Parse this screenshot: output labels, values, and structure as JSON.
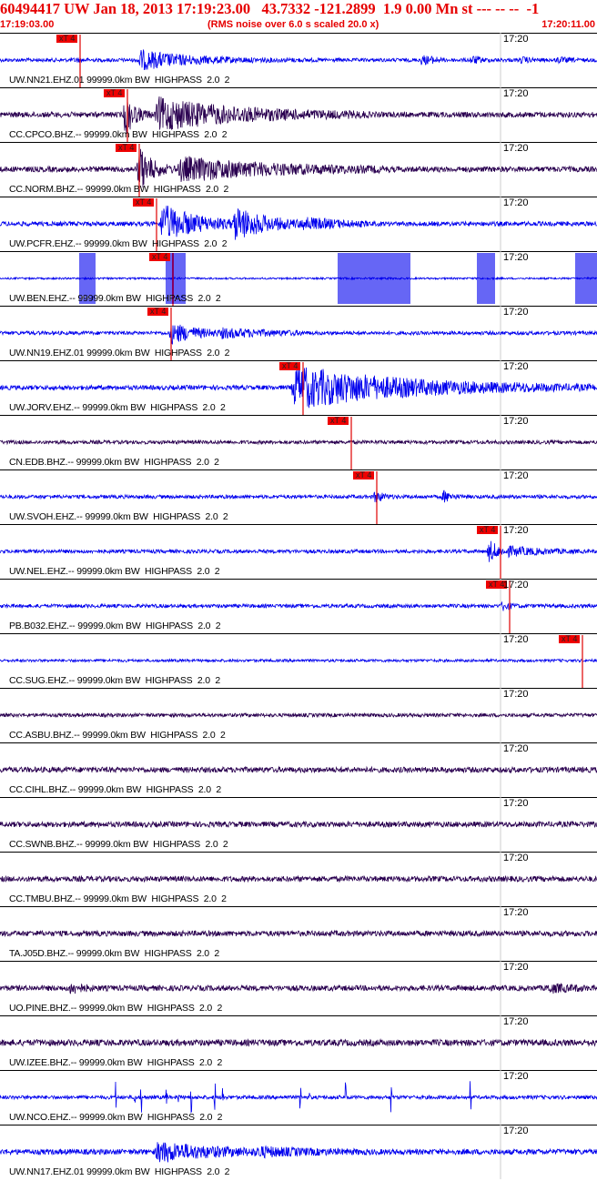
{
  "header": {
    "title": "60494417 UW Jan 18, 2013 17:19:23.00   43.7332 -121.2899  1.9 0.00 Mn st --- -- --  -1",
    "start_time": "17:19:03.00",
    "rms_note": "(RMS noise over 6.0 s scaled 20.0 x)",
    "end_time": "17:20:11.00"
  },
  "colors": {
    "blue": "#0000ee",
    "dark": "#2a0050",
    "red": "#e00000"
  },
  "chart_data": {
    "type": "line",
    "title": "60494417 UW Jan 18, 2013 17:19:23.00   43.7332 -121.2899  1.9 0.00 Mn st --- -- --  -1",
    "time_range": [
      "17:19:03.00",
      "17:20:11.00"
    ],
    "tick_label": "17:20",
    "pick_label": "xT 4",
    "traces": [
      {
        "label": "UW.NN21.EHZ.01 99999.0km BW  HIGHPASS  2.0  2",
        "color": "blue",
        "pick": 88,
        "amp": 2,
        "bursts": [
          [
            80,
            90,
            2,
            10
          ],
          [
            150,
            350,
            11,
            55
          ],
          [
            460,
            480,
            5,
            20
          ],
          [
            515,
            525,
            4,
            20
          ],
          [
            570,
            580,
            3,
            15
          ],
          [
            610,
            630,
            3,
            12
          ]
        ]
      },
      {
        "label": "CC.CPCO.BHZ.-- 99999.0km BW  HIGHPASS  2.0  2",
        "color": "dark",
        "pick": 140,
        "amp": 3,
        "bursts": [
          [
            135,
            175,
            30,
            10
          ],
          [
            170,
            400,
            18,
            90
          ]
        ]
      },
      {
        "label": "CC.NORM.BHZ.-- 99999.0km BW  HIGHPASS  2.0  2",
        "color": "dark",
        "pick": 153,
        "amp": 3,
        "bursts": [
          [
            150,
            200,
            30,
            14
          ],
          [
            195,
            420,
            13,
            100
          ]
        ]
      },
      {
        "label": "UW.PCFR.EHZ.-- 99999.0km BW  HIGHPASS  2.0  2",
        "color": "blue",
        "pick": 172,
        "amp": 2.5,
        "bursts": [
          [
            175,
            255,
            22,
            40
          ],
          [
            255,
            330,
            20,
            35
          ],
          [
            330,
            400,
            7,
            40
          ]
        ]
      },
      {
        "label": "UW.BEN.EHZ.-- 99999.0km BW  HIGHPASS  2.0  2",
        "color": "blue",
        "pick": 190,
        "amp": 1,
        "boxes": [
          [
            88,
            106
          ],
          [
            183,
            205
          ],
          [
            372,
            452
          ],
          [
            525,
            545
          ],
          [
            633,
            656
          ]
        ]
      },
      {
        "label": "UW.NN19.EHZ.01 99999.0km BW  HIGHPASS  2.0  2",
        "color": "blue",
        "pick": 188,
        "amp": 2,
        "bursts": [
          [
            185,
            240,
            12,
            30
          ],
          [
            240,
            330,
            5,
            60
          ]
        ]
      },
      {
        "label": "UW.JORV.EHZ.-- 99999.0km BW  HIGHPASS  2.0  2",
        "color": "blue",
        "pick": 333,
        "amp": 2.5,
        "bursts": [
          [
            320,
            560,
            24,
            120
          ],
          [
            560,
            656,
            4,
            80
          ]
        ]
      },
      {
        "label": "CN.EDB.BHZ.-- 99999.0km BW  HIGHPASS  2.0  2",
        "color": "dark",
        "pick": 386,
        "amp": 2,
        "bursts": []
      },
      {
        "label": "UW.SVOH.EHZ.-- 99999.0km BW  HIGHPASS  2.0  2",
        "color": "blue",
        "pick": 414,
        "amp": 2,
        "bursts": [
          [
            410,
            430,
            9,
            8
          ],
          [
            485,
            500,
            8,
            8
          ]
        ]
      },
      {
        "label": "UW.NEL.EHZ.-- 99999.0km BW  HIGHPASS  2.0  2",
        "color": "blue",
        "pick": 550,
        "amp": 2,
        "bursts": [
          [
            535,
            560,
            16,
            10
          ],
          [
            555,
            630,
            5,
            40
          ]
        ]
      },
      {
        "label": "PB.B032.EHZ.-- 99999.0km BW  HIGHPASS  2.0  2",
        "color": "blue",
        "pick": 560,
        "amp": 2,
        "bursts": [
          [
            550,
            570,
            6,
            8
          ]
        ]
      },
      {
        "label": "CC.SUG.EHZ.-- 99999.0km BW  HIGHPASS  2.0  2",
        "color": "blue",
        "pick": 640,
        "amp": 1.5,
        "bursts": []
      },
      {
        "label": "CC.ASBU.BHZ.-- 99999.0km BW  HIGHPASS  2.0  2",
        "color": "dark",
        "pick": null,
        "amp": 2,
        "bursts": []
      },
      {
        "label": "CC.CIHL.BHZ.-- 99999.0km BW  HIGHPASS  2.0  2",
        "color": "dark",
        "pick": null,
        "amp": 3,
        "bursts": []
      },
      {
        "label": "CC.SWNB.BHZ.-- 99999.0km BW  HIGHPASS  2.0  2",
        "color": "dark",
        "pick": null,
        "amp": 3,
        "bursts": []
      },
      {
        "label": "CC.TMBU.BHZ.-- 99999.0km BW  HIGHPASS  2.0  2",
        "color": "dark",
        "pick": null,
        "amp": 3,
        "bursts": []
      },
      {
        "label": "TA.J05D.BHZ.-- 99999.0km BW  HIGHPASS  2.0  2",
        "color": "dark",
        "pick": null,
        "amp": 3,
        "bursts": []
      },
      {
        "label": "UO.PINE.BHZ.-- 99999.0km BW  HIGHPASS  2.0  2",
        "color": "dark",
        "pick": null,
        "amp": 3,
        "bursts": [
          [
            75,
            100,
            7,
            12
          ],
          [
            600,
            640,
            4,
            30
          ]
        ]
      },
      {
        "label": "UW.IZEE.BHZ.-- 99999.0km BW  HIGHPASS  2.0  2",
        "color": "dark",
        "pick": null,
        "amp": 3.5,
        "bursts": []
      },
      {
        "label": "UW.NCO.EHZ.-- 99999.0km BW  HIGHPASS  2.0  2",
        "color": "blue",
        "pick": null,
        "amp": 2,
        "spikes": [
          127,
          148,
          155,
          183,
          196,
          210,
          236,
          245,
          330,
          340,
          380,
          430,
          517
        ]
      },
      {
        "label": "UW.NN17.EHZ.01 99999.0km BW  HIGHPASS  2.0  2",
        "color": "blue",
        "pick": null,
        "amp": 3,
        "bursts": [
          [
            170,
            280,
            11,
            60
          ],
          [
            280,
            400,
            5,
            50
          ]
        ]
      }
    ]
  }
}
